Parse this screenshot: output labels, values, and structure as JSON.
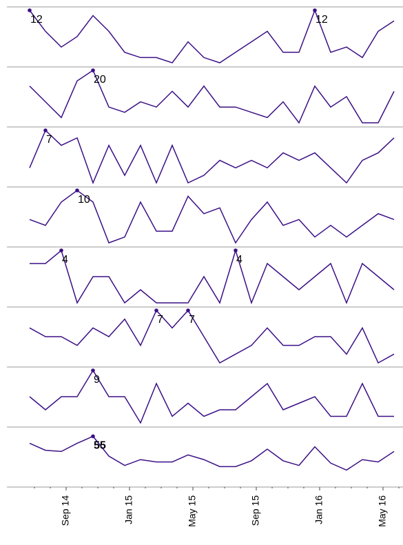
{
  "chart_data": [
    {
      "type": "line",
      "color": "#3b0f86",
      "label_max": true,
      "ylim": [
        2,
        12
      ],
      "values": [
        12,
        8,
        5,
        7,
        11,
        8,
        4,
        3,
        3,
        2,
        6,
        3,
        2,
        4,
        6,
        8,
        4,
        4,
        12,
        4,
        5,
        3,
        8,
        10
      ]
    },
    {
      "type": "line",
      "color": "#3b0f86",
      "label_max": true,
      "ylim": [
        10,
        20
      ],
      "values": [
        17,
        14,
        11,
        18,
        20,
        13,
        12,
        14,
        13,
        16,
        13,
        17,
        13,
        13,
        12,
        11,
        14,
        10,
        17,
        13,
        15,
        10,
        10,
        16
      ]
    },
    {
      "type": "line",
      "color": "#3b0f86",
      "label_max": true,
      "ylim": [
        0,
        7
      ],
      "values": [
        2,
        7,
        5,
        6,
        0,
        5,
        1,
        5,
        0,
        5,
        0,
        1,
        3,
        2,
        3,
        2,
        4,
        3,
        4,
        2,
        0,
        3,
        4,
        6
      ]
    },
    {
      "type": "line",
      "color": "#3b0f86",
      "label_max": true,
      "ylim": [
        1,
        10
      ],
      "values": [
        5,
        4,
        8,
        10,
        8,
        1,
        2,
        8,
        3,
        3,
        9,
        6,
        7,
        1,
        5,
        8,
        4,
        5,
        2,
        4,
        2,
        4,
        6,
        5
      ]
    },
    {
      "type": "line",
      "color": "#3b0f86",
      "label_max": true,
      "ylim": [
        0,
        4
      ],
      "values": [
        3,
        3,
        4,
        0,
        2,
        2,
        0,
        1,
        0,
        0,
        0,
        2,
        0,
        4,
        0,
        3,
        2,
        1,
        2,
        3,
        0,
        3,
        2,
        1
      ]
    },
    {
      "type": "line",
      "color": "#3b0f86",
      "label_max": true,
      "ylim": [
        1,
        7
      ],
      "values": [
        5,
        4,
        4,
        3,
        5,
        4,
        6,
        3,
        7,
        5,
        7,
        4,
        1,
        2,
        3,
        5,
        3,
        3,
        4,
        4,
        2,
        5,
        1,
        2
      ]
    },
    {
      "type": "line",
      "color": "#3b0f86",
      "label_max": true,
      "ylim": [
        1,
        9
      ],
      "values": [
        5,
        3,
        5,
        5,
        9,
        5,
        5,
        1,
        7,
        2,
        4,
        2,
        3,
        3,
        5,
        7,
        3,
        4,
        5,
        2,
        2,
        7,
        2,
        2
      ]
    },
    {
      "type": "line",
      "color": "#3b0f86",
      "label_max": true,
      "bold_label": true,
      "ylim": [
        15,
        60
      ],
      "values": [
        49,
        43,
        42,
        49,
        55,
        38,
        30,
        35,
        33,
        33,
        39,
        35,
        29,
        29,
        34,
        44,
        34,
        30,
        46,
        32,
        26,
        35,
        33,
        42
      ],
      "categories": [
        null,
        null,
        "Sep 14",
        null,
        null,
        null,
        "Jan 15",
        null,
        null,
        null,
        "May 15",
        null,
        null,
        null,
        "Sep 15",
        null,
        null,
        null,
        "Jan 16",
        null,
        null,
        null,
        "May 16",
        null
      ]
    }
  ]
}
